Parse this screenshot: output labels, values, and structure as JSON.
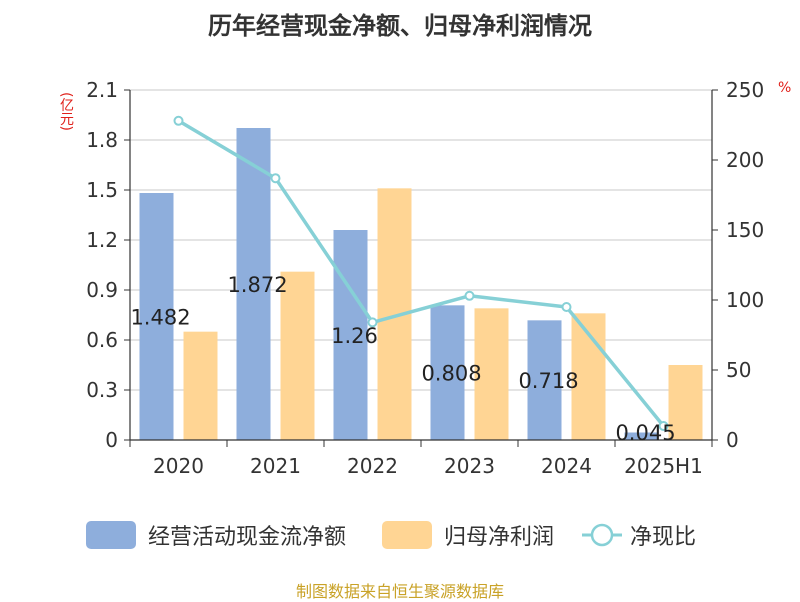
{
  "title": "历年经营现金净额、归母净利润情况",
  "left_unit": "(亿元)",
  "right_unit": "%",
  "source": "制图数据来自恒生聚源数据库",
  "colors": {
    "bar_cash": "#8eaedc",
    "bar_profit": "#ffd594",
    "line": "#86d0d6"
  },
  "chart_data": {
    "type": "bar",
    "categories": [
      "2020",
      "2021",
      "2022",
      "2023",
      "2024",
      "2025H1"
    ],
    "series": [
      {
        "name": "经营活动现金流净额",
        "type": "bar",
        "axis": "left",
        "values": [
          1.482,
          1.872,
          1.26,
          0.808,
          0.718,
          0.045
        ],
        "labels": [
          "1.482",
          "1.872",
          "1.26",
          "0.808",
          "0.718",
          "0.045"
        ]
      },
      {
        "name": "归母净利润",
        "type": "bar",
        "axis": "left",
        "values": [
          0.65,
          1.01,
          1.51,
          0.79,
          0.76,
          0.45
        ]
      },
      {
        "name": "净现比",
        "type": "line",
        "axis": "right",
        "values": [
          228,
          187,
          84,
          103,
          95,
          10
        ]
      }
    ],
    "left_axis": {
      "min": 0,
      "max": 2.1,
      "ticks": [
        "0",
        "0.3",
        "0.6",
        "0.9",
        "1.2",
        "1.5",
        "1.8",
        "2.1"
      ]
    },
    "right_axis": {
      "min": 0,
      "max": 250,
      "ticks": [
        "0",
        "50",
        "100",
        "150",
        "200",
        "250"
      ]
    },
    "grid": true,
    "legend": "bottom"
  }
}
